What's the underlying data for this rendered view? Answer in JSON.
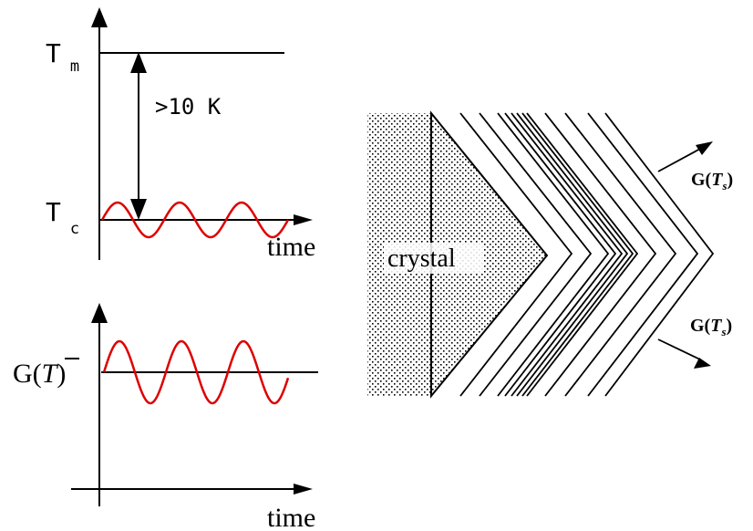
{
  "top_panel": {
    "label_tm": "T",
    "label_tm_sub": "m",
    "label_tc": "T",
    "label_tc_sub": "c",
    "gap_label": ">10 K",
    "x_label": "time"
  },
  "bottom_panel": {
    "y_label": "G(",
    "y_label_sym": "T",
    "y_label_close": ")",
    "x_label": "time"
  },
  "right_panel": {
    "crystal_label": "crystal",
    "growth_label_upper": "G(",
    "growth_label_upper_sym": "T",
    "growth_label_upper_sub": "s",
    "growth_label_upper_close": ")",
    "growth_label_lower": "G(",
    "growth_label_lower_sym": "T",
    "growth_label_lower_sub": "s",
    "growth_label_lower_close": ")"
  },
  "colors": {
    "line": "#000000",
    "wave": "#dd0000",
    "background": "#ffffff"
  }
}
